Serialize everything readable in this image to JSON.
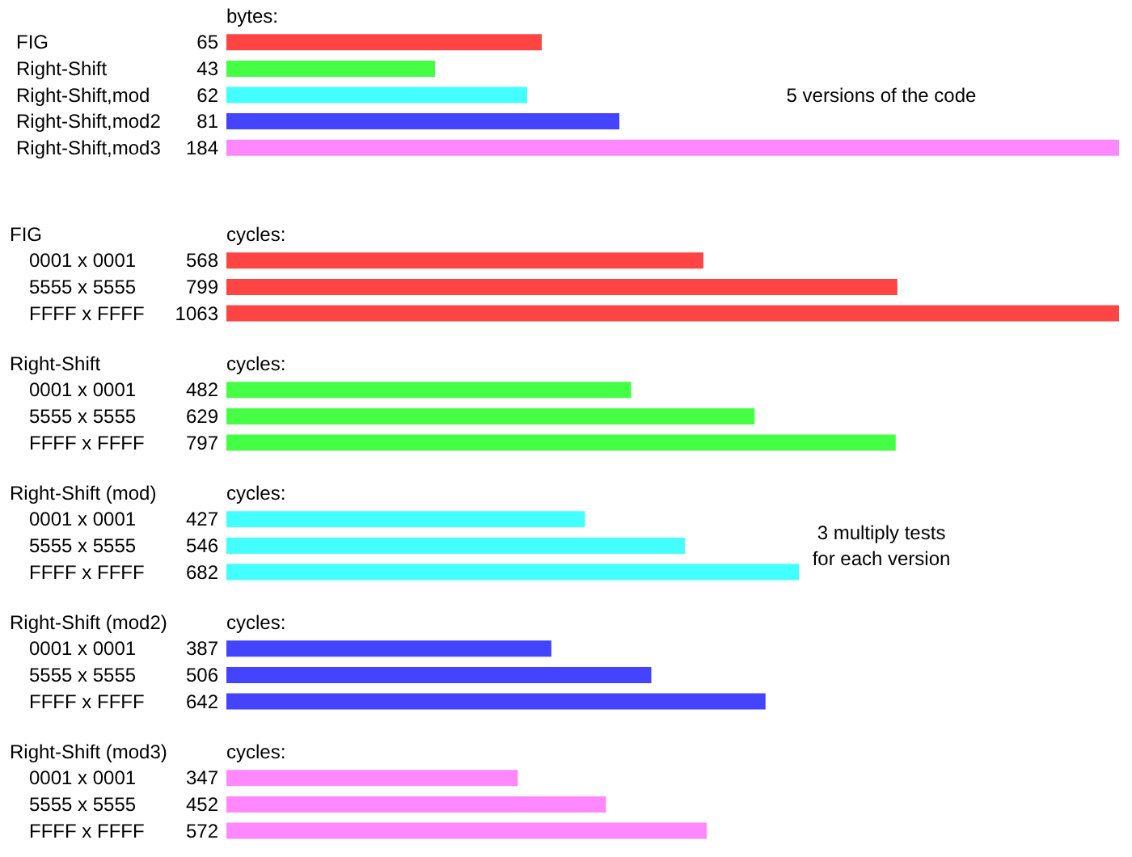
{
  "chart_data": [
    {
      "type": "bar",
      "orientation": "horizontal",
      "xlabel": "bytes:",
      "categories": [
        "FIG",
        "Right-Shift",
        "Right-Shift,mod",
        "Right-Shift,mod2",
        "Right-Shift,mod3"
      ],
      "values": [
        65,
        43,
        62,
        81,
        184
      ],
      "colors": [
        "#ff4444",
        "#44ff44",
        "#44ffff",
        "#4444ff",
        "#ff88ff"
      ],
      "data_labels": true,
      "annotations": [
        "5 versions of the code"
      ]
    },
    {
      "type": "bar",
      "orientation": "horizontal",
      "title": "FIG",
      "xlabel": "cycles:",
      "categories": [
        "0001 x 0001",
        "5555 x 5555",
        "FFFF x FFFF"
      ],
      "values": [
        568,
        799,
        1063
      ],
      "color": "#ff4444",
      "data_labels": true
    },
    {
      "type": "bar",
      "orientation": "horizontal",
      "title": "Right-Shift",
      "xlabel": "cycles:",
      "categories": [
        "0001 x 0001",
        "5555 x 5555",
        "FFFF x FFFF"
      ],
      "values": [
        482,
        629,
        797
      ],
      "color": "#44ff44",
      "data_labels": true
    },
    {
      "type": "bar",
      "orientation": "horizontal",
      "title": "Right-Shift (mod)",
      "xlabel": "cycles:",
      "categories": [
        "0001 x 0001",
        "5555 x 5555",
        "FFFF x FFFF"
      ],
      "values": [
        427,
        546,
        682
      ],
      "color": "#44ffff",
      "data_labels": true,
      "annotations": [
        "3 multiply tests\nfor each version"
      ]
    },
    {
      "type": "bar",
      "orientation": "horizontal",
      "title": "Right-Shift (mod2)",
      "xlabel": "cycles:",
      "categories": [
        "0001 x 0001",
        "5555 x 5555",
        "FFFF x FFFF"
      ],
      "values": [
        387,
        506,
        642
      ],
      "color": "#4444ff",
      "data_labels": true
    },
    {
      "type": "bar",
      "orientation": "horizontal",
      "title": "Right-Shift (mod3)",
      "xlabel": "cycles:",
      "categories": [
        "0001 x 0001",
        "5555 x 5555",
        "FFFF x FFFF"
      ],
      "values": [
        347,
        452,
        572
      ],
      "color": "#ff88ff",
      "data_labels": true
    }
  ]
}
